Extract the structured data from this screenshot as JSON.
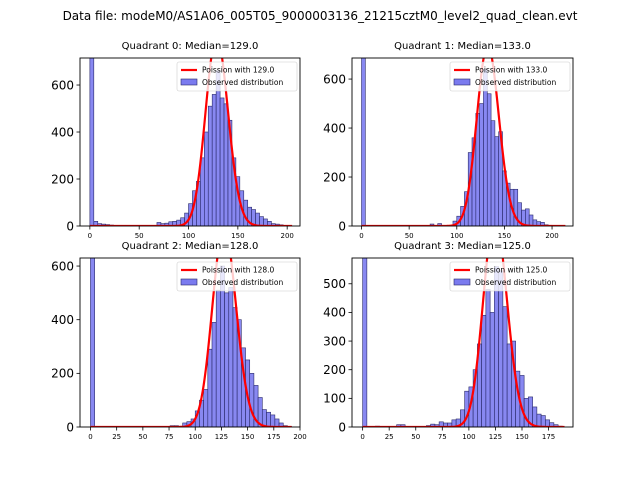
{
  "suptitle": "Data file: modeM0/AS1A06_005T05_9000003136_21215cztM0_level2_quad_clean.evt",
  "colors": {
    "bar_fill": "#7b7bef",
    "bar_edge": "#2a2a6a",
    "poisson_line": "#ff0000"
  },
  "legend": {
    "observed_label": "Observed distribution"
  },
  "chart_data": [
    {
      "type": "bar",
      "title": "Quadrant 0: Median=129.0",
      "legend": [
        "Poission with 129.0",
        "Observed distribution"
      ],
      "legend_position": "upper-right",
      "median": 129.0,
      "xlim": [
        -10,
        213
      ],
      "ylim": [
        0,
        715
      ],
      "xticks": [
        0,
        50,
        100,
        150,
        200
      ],
      "yticks": [
        0,
        200,
        400,
        600
      ],
      "bin_width": 4,
      "bins": [
        [
          0,
          715
        ],
        [
          4,
          20
        ],
        [
          8,
          10
        ],
        [
          12,
          8
        ],
        [
          16,
          6
        ],
        [
          20,
          4
        ],
        [
          24,
          3
        ],
        [
          28,
          3
        ],
        [
          32,
          3
        ],
        [
          36,
          3
        ],
        [
          40,
          3
        ],
        [
          44,
          3
        ],
        [
          48,
          3
        ],
        [
          52,
          3
        ],
        [
          56,
          3
        ],
        [
          60,
          3
        ],
        [
          64,
          3
        ],
        [
          68,
          15
        ],
        [
          72,
          10
        ],
        [
          76,
          12
        ],
        [
          80,
          18
        ],
        [
          84,
          20
        ],
        [
          88,
          25
        ],
        [
          92,
          35
        ],
        [
          96,
          55
        ],
        [
          100,
          95
        ],
        [
          104,
          150
        ],
        [
          108,
          190
        ],
        [
          112,
          290
        ],
        [
          116,
          400
        ],
        [
          120,
          510
        ],
        [
          124,
          560
        ],
        [
          128,
          660
        ],
        [
          132,
          545
        ],
        [
          136,
          520
        ],
        [
          140,
          450
        ],
        [
          144,
          290
        ],
        [
          148,
          210
        ],
        [
          152,
          150
        ],
        [
          156,
          110
        ],
        [
          160,
          80
        ],
        [
          164,
          70
        ],
        [
          168,
          55
        ],
        [
          172,
          40
        ],
        [
          176,
          30
        ],
        [
          180,
          20
        ],
        [
          184,
          10
        ],
        [
          188,
          8
        ],
        [
          192,
          5
        ],
        [
          196,
          3
        ],
        [
          200,
          2
        ]
      ]
    },
    {
      "type": "bar",
      "title": "Quadrant 1: Median=133.0",
      "legend": [
        "Poission with 133.0",
        "Observed distribution"
      ],
      "legend_position": "upper-right",
      "median": 133.0,
      "xlim": [
        -10,
        222
      ],
      "ylim": [
        0,
        686
      ],
      "xticks": [
        0,
        50,
        100,
        150,
        200
      ],
      "yticks": [
        0,
        200,
        400,
        600
      ],
      "bin_width": 4,
      "bins": [
        [
          0,
          686
        ],
        [
          72,
          8
        ],
        [
          80,
          10
        ],
        [
          96,
          20
        ],
        [
          100,
          40
        ],
        [
          104,
          80
        ],
        [
          108,
          140
        ],
        [
          112,
          300
        ],
        [
          116,
          360
        ],
        [
          120,
          460
        ],
        [
          124,
          500
        ],
        [
          128,
          640
        ],
        [
          132,
          540
        ],
        [
          136,
          430
        ],
        [
          140,
          365
        ],
        [
          144,
          385
        ],
        [
          148,
          225
        ],
        [
          152,
          175
        ],
        [
          156,
          150
        ],
        [
          160,
          150
        ],
        [
          164,
          95
        ],
        [
          168,
          65
        ],
        [
          172,
          70
        ],
        [
          176,
          45
        ],
        [
          180,
          25
        ],
        [
          184,
          18
        ],
        [
          188,
          15
        ],
        [
          192,
          5
        ],
        [
          196,
          3
        ],
        [
          200,
          2
        ]
      ]
    },
    {
      "type": "bar",
      "title": "Quadrant 2: Median=128.0",
      "legend": [
        "Poission with 128.0",
        "Observed distribution"
      ],
      "legend_position": "upper-right",
      "median": 128.0,
      "xlim": [
        -10,
        200
      ],
      "ylim": [
        0,
        630
      ],
      "xticks": [
        0,
        25,
        50,
        75,
        100,
        125,
        150,
        175,
        200
      ],
      "yticks": [
        0,
        200,
        400,
        600
      ],
      "bin_width": 4,
      "bins": [
        [
          0,
          630
        ],
        [
          76,
          5
        ],
        [
          80,
          5
        ],
        [
          84,
          3
        ],
        [
          88,
          15
        ],
        [
          92,
          20
        ],
        [
          96,
          30
        ],
        [
          100,
          60
        ],
        [
          104,
          100
        ],
        [
          108,
          140
        ],
        [
          112,
          290
        ],
        [
          116,
          390
        ],
        [
          120,
          510
        ],
        [
          124,
          600
        ],
        [
          128,
          500
        ],
        [
          132,
          520
        ],
        [
          136,
          445
        ],
        [
          140,
          400
        ],
        [
          144,
          295
        ],
        [
          148,
          250
        ],
        [
          152,
          200
        ],
        [
          156,
          155
        ],
        [
          160,
          110
        ],
        [
          164,
          65
        ],
        [
          168,
          55
        ],
        [
          172,
          45
        ],
        [
          176,
          30
        ],
        [
          180,
          15
        ],
        [
          184,
          5
        ],
        [
          188,
          2
        ]
      ]
    },
    {
      "type": "bar",
      "title": "Quadrant 3: Median=125.0",
      "legend": [
        "Poission with 125.0",
        "Observed distribution"
      ],
      "legend_position": "upper-right",
      "median": 125.0,
      "xlim": [
        -10,
        198
      ],
      "ylim": [
        0,
        590
      ],
      "xticks": [
        0,
        25,
        50,
        75,
        100,
        125,
        150,
        175
      ],
      "yticks": [
        0,
        100,
        200,
        300,
        400,
        500
      ],
      "bin_width": 4,
      "bins": [
        [
          0,
          590
        ],
        [
          12,
          3
        ],
        [
          32,
          8
        ],
        [
          36,
          8
        ],
        [
          60,
          5
        ],
        [
          64,
          10
        ],
        [
          68,
          8
        ],
        [
          72,
          18
        ],
        [
          76,
          14
        ],
        [
          80,
          14
        ],
        [
          84,
          25
        ],
        [
          88,
          28
        ],
        [
          92,
          60
        ],
        [
          96,
          125
        ],
        [
          100,
          140
        ],
        [
          104,
          200
        ],
        [
          108,
          290
        ],
        [
          112,
          390
        ],
        [
          116,
          480
        ],
        [
          120,
          400
        ],
        [
          124,
          560
        ],
        [
          128,
          545
        ],
        [
          132,
          420
        ],
        [
          136,
          290
        ],
        [
          140,
          300
        ],
        [
          144,
          195
        ],
        [
          148,
          180
        ],
        [
          152,
          100
        ],
        [
          156,
          105
        ],
        [
          160,
          70
        ],
        [
          164,
          45
        ],
        [
          168,
          40
        ],
        [
          172,
          25
        ],
        [
          176,
          15
        ],
        [
          180,
          8
        ],
        [
          184,
          3
        ]
      ]
    }
  ]
}
